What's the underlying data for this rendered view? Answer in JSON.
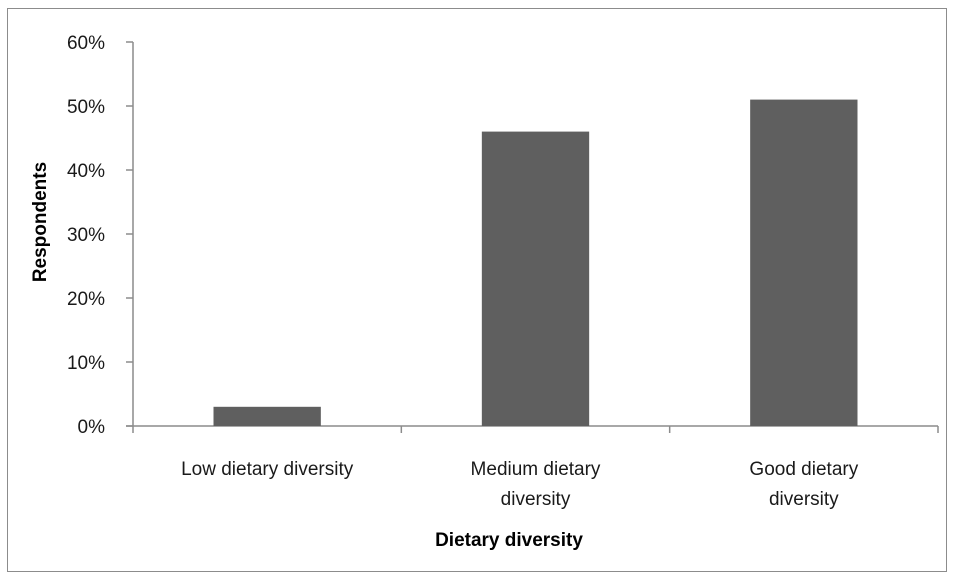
{
  "chart_data": {
    "type": "bar",
    "categories": [
      [
        "Low dietary diversity"
      ],
      [
        "Medium dietary",
        "diversity"
      ],
      [
        "Good dietary",
        "diversity"
      ]
    ],
    "values": [
      0.03,
      0.46,
      0.51
    ],
    "ylim": [
      0,
      0.6
    ],
    "yticks": [
      0,
      0.1,
      0.2,
      0.3,
      0.4,
      0.5,
      0.6
    ],
    "ytick_labels": [
      "0%",
      "10%",
      "20%",
      "30%",
      "40%",
      "50%",
      "60%"
    ],
    "xlabel": "Dietary diversity",
    "ylabel": "Respondents",
    "grid": false,
    "bar_color": "#5f5f5f",
    "axis_color": "#8c8c8c"
  }
}
